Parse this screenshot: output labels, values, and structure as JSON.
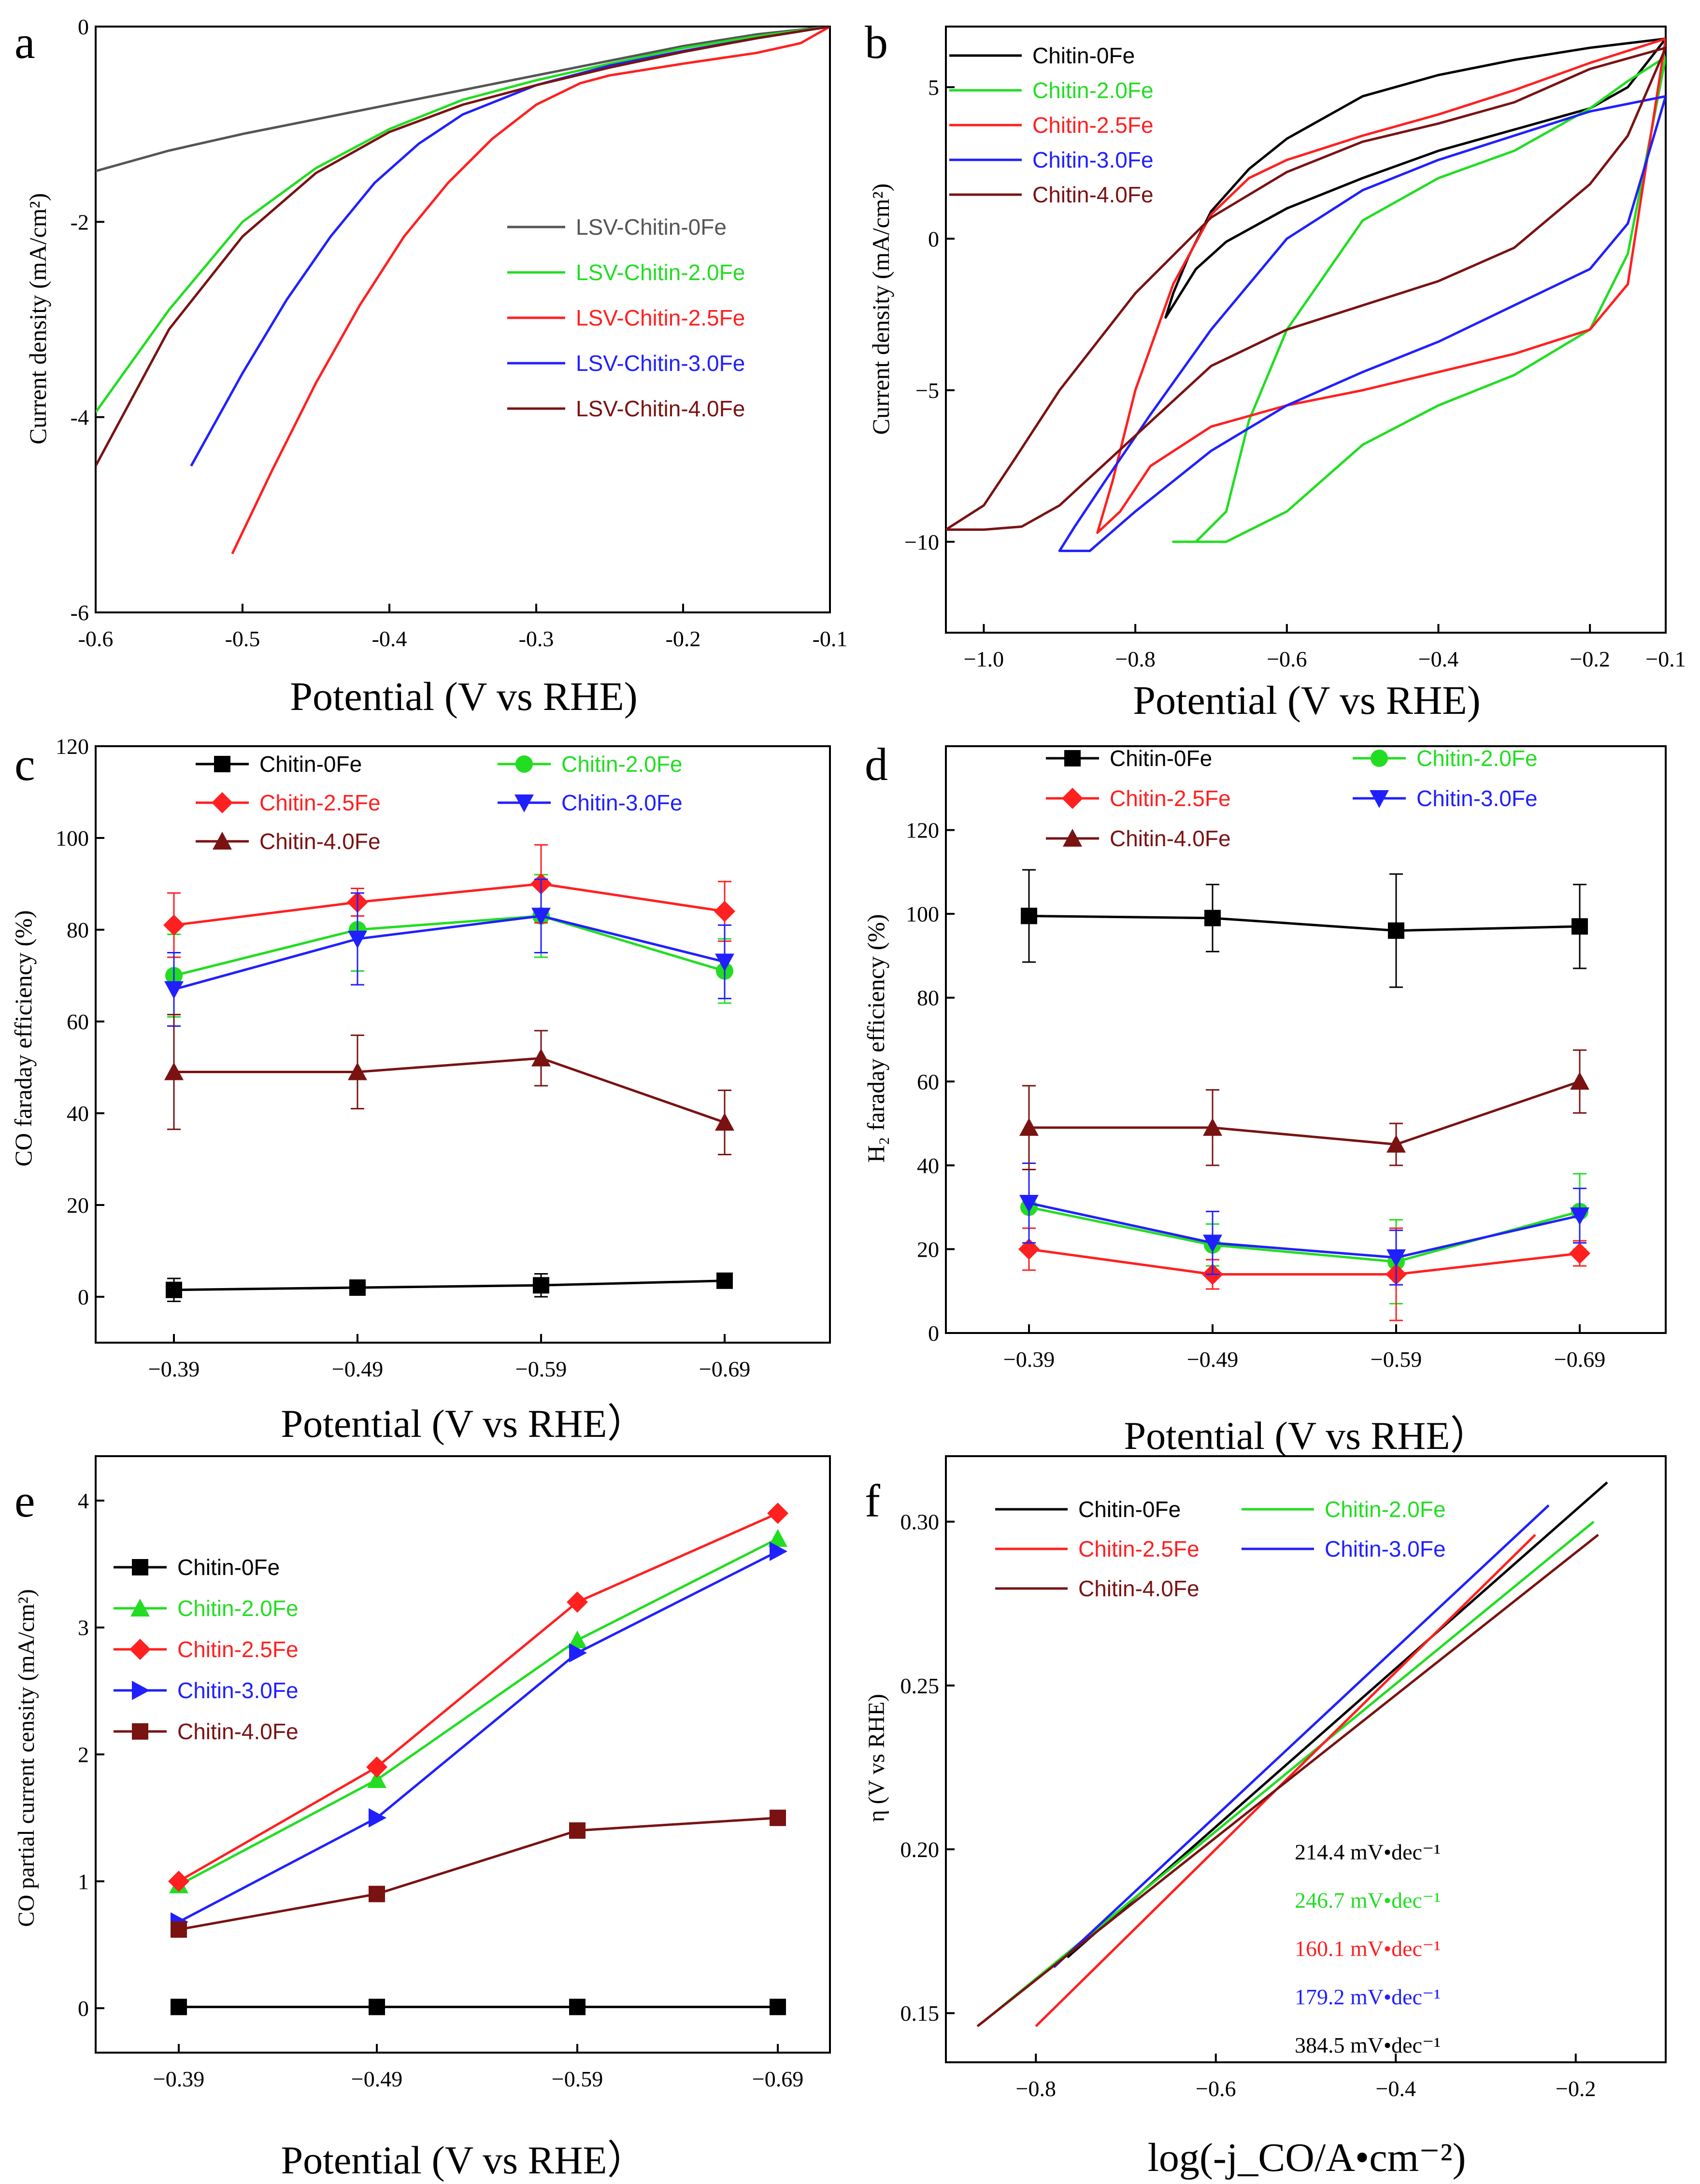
{
  "chart_data": [
    {
      "panel": "a",
      "type": "line",
      "xlabel": "Potential (V vs RHE)",
      "ylabel": "Current density (mA/cm²)",
      "xlim": [
        -0.6,
        -0.1
      ],
      "ylim": [
        -6,
        0
      ],
      "xticks": [
        -0.6,
        -0.5,
        -0.4,
        -0.3,
        -0.2,
        -0.1
      ],
      "yticks": [
        -6,
        -4,
        -2,
        0
      ],
      "xtick_labels": [
        "-0.6",
        "-0.5",
        "-0.4",
        "-0.3",
        "-0.2",
        "-0.1"
      ],
      "ytick_labels": [
        "-6",
        "-4",
        "-2",
        "0"
      ],
      "legend_position": "center-right",
      "series": [
        {
          "name": "LSV-Chitin-0Fe",
          "color": "#555555",
          "x": [
            -0.6,
            -0.55,
            -0.5,
            -0.45,
            -0.4,
            -0.35,
            -0.3,
            -0.25,
            -0.2,
            -0.15,
            -0.1
          ],
          "y": [
            -1.48,
            -1.27,
            -1.1,
            -0.95,
            -0.8,
            -0.65,
            -0.5,
            -0.35,
            -0.2,
            -0.08,
            0
          ]
        },
        {
          "name": "LSV-Chitin-2.0Fe",
          "color": "#22dd22",
          "x": [
            -0.6,
            -0.55,
            -0.5,
            -0.45,
            -0.4,
            -0.35,
            -0.3,
            -0.25,
            -0.2,
            -0.15,
            -0.1
          ],
          "y": [
            -3.95,
            -2.9,
            -2.0,
            -1.45,
            -1.05,
            -0.75,
            -0.55,
            -0.38,
            -0.22,
            -0.1,
            0
          ]
        },
        {
          "name": "LSV-Chitin-2.5Fe",
          "color": "#ff2020",
          "x": [
            -0.507,
            -0.48,
            -0.45,
            -0.42,
            -0.39,
            -0.36,
            -0.33,
            -0.3,
            -0.27,
            -0.25,
            -0.2,
            -0.15,
            -0.12,
            -0.1
          ],
          "y": [
            -5.4,
            -4.55,
            -3.65,
            -2.85,
            -2.15,
            -1.6,
            -1.15,
            -0.8,
            -0.58,
            -0.5,
            -0.38,
            -0.27,
            -0.17,
            0
          ]
        },
        {
          "name": "LSV-Chitin-3.0Fe",
          "color": "#2020ff",
          "x": [
            -0.535,
            -0.5,
            -0.47,
            -0.44,
            -0.41,
            -0.38,
            -0.35,
            -0.3,
            -0.25,
            -0.2,
            -0.15,
            -0.1
          ],
          "y": [
            -4.5,
            -3.55,
            -2.8,
            -2.15,
            -1.6,
            -1.2,
            -0.9,
            -0.6,
            -0.4,
            -0.25,
            -0.12,
            0
          ]
        },
        {
          "name": "LSV-Chitin-4.0Fe",
          "color": "#7a1212",
          "x": [
            -0.6,
            -0.55,
            -0.5,
            -0.45,
            -0.4,
            -0.35,
            -0.3,
            -0.25,
            -0.2,
            -0.15,
            -0.1
          ],
          "y": [
            -4.5,
            -3.1,
            -2.15,
            -1.5,
            -1.08,
            -0.8,
            -0.6,
            -0.42,
            -0.26,
            -0.12,
            0
          ]
        }
      ]
    },
    {
      "panel": "b",
      "type": "line",
      "xlabel": "Potential (V vs RHE)",
      "ylabel": "Current density (mA/cm²)",
      "xlim": [
        -1.05,
        -0.1
      ],
      "ylim": [
        -13,
        7
      ],
      "xticks": [
        -1.0,
        -0.8,
        -0.6,
        -0.4,
        -0.2,
        -0.1
      ],
      "yticks": [
        -10,
        -5,
        0,
        5
      ],
      "xtick_labels": [
        "−1.0",
        "−0.8",
        "−0.6",
        "−0.4",
        "−0.2",
        "−0.1"
      ],
      "ytick_labels": [
        "−10",
        "−5",
        "0",
        "5"
      ],
      "legend_position": "top-left",
      "series": [
        {
          "name": "Chitin-0Fe",
          "color": "#000000",
          "x": [
            -0.1,
            -0.2,
            -0.3,
            -0.4,
            -0.5,
            -0.6,
            -0.65,
            -0.7,
            -0.73,
            -0.75,
            -0.76,
            -0.75,
            -0.72,
            -0.68,
            -0.6,
            -0.5,
            -0.4,
            -0.3,
            -0.2,
            -0.15,
            -0.1
          ],
          "y": [
            6.6,
            6.3,
            5.9,
            5.4,
            4.7,
            3.3,
            2.3,
            0.9,
            -0.6,
            -1.8,
            -2.6,
            -2.2,
            -1.0,
            -0.1,
            1.0,
            2.0,
            2.9,
            3.6,
            4.3,
            5.0,
            6.6
          ]
        },
        {
          "name": "Chitin-2.0Fe",
          "color": "#22dd22",
          "x": [
            -0.1,
            -0.15,
            -0.2,
            -0.3,
            -0.4,
            -0.5,
            -0.6,
            -0.65,
            -0.68,
            -0.72,
            -0.75,
            -0.72,
            -0.68,
            -0.6,
            -0.5,
            -0.4,
            -0.3,
            -0.2,
            -0.15,
            -0.1
          ],
          "y": [
            6.0,
            5.2,
            4.3,
            2.9,
            2.0,
            0.6,
            -3.0,
            -6.0,
            -9.0,
            -10.0,
            -10.0,
            -10.0,
            -10.0,
            -9.0,
            -6.8,
            -5.5,
            -4.5,
            -3.0,
            -0.5,
            6.0
          ]
        },
        {
          "name": "Chitin-2.5Fe",
          "color": "#ff2020",
          "x": [
            -0.1,
            -0.2,
            -0.3,
            -0.4,
            -0.5,
            -0.6,
            -0.65,
            -0.7,
            -0.75,
            -0.8,
            -0.83,
            -0.85,
            -0.82,
            -0.78,
            -0.7,
            -0.6,
            -0.5,
            -0.4,
            -0.3,
            -0.2,
            -0.15,
            -0.1
          ],
          "y": [
            6.6,
            5.8,
            4.9,
            4.1,
            3.4,
            2.6,
            2.0,
            0.8,
            -1.5,
            -5.0,
            -8.0,
            -9.7,
            -9.0,
            -7.5,
            -6.2,
            -5.5,
            -5.0,
            -4.4,
            -3.8,
            -3.0,
            -1.5,
            6.6
          ]
        },
        {
          "name": "Chitin-3.0Fe",
          "color": "#2020ff",
          "x": [
            -0.1,
            -0.2,
            -0.3,
            -0.4,
            -0.5,
            -0.6,
            -0.7,
            -0.78,
            -0.84,
            -0.88,
            -0.9,
            -0.86,
            -0.8,
            -0.7,
            -0.6,
            -0.5,
            -0.4,
            -0.3,
            -0.2,
            -0.15,
            -0.1
          ],
          "y": [
            4.7,
            4.2,
            3.4,
            2.6,
            1.6,
            0.0,
            -3.0,
            -5.8,
            -8.0,
            -9.5,
            -10.3,
            -10.3,
            -9.0,
            -7.0,
            -5.5,
            -4.4,
            -3.4,
            -2.2,
            -1.0,
            0.5,
            4.7
          ]
        },
        {
          "name": "Chitin-4.0Fe",
          "color": "#7a1212",
          "x": [
            -0.1,
            -0.2,
            -0.3,
            -0.4,
            -0.5,
            -0.6,
            -0.7,
            -0.8,
            -0.9,
            -0.96,
            -1.0,
            -1.05,
            -1.0,
            -0.95,
            -0.9,
            -0.8,
            -0.7,
            -0.6,
            -0.5,
            -0.4,
            -0.3,
            -0.2,
            -0.15,
            -0.1
          ],
          "y": [
            6.3,
            5.6,
            4.5,
            3.8,
            3.2,
            2.2,
            0.7,
            -1.8,
            -5.0,
            -7.3,
            -8.8,
            -9.6,
            -9.6,
            -9.5,
            -8.8,
            -6.5,
            -4.2,
            -3.0,
            -2.2,
            -1.4,
            -0.3,
            1.8,
            3.4,
            6.3
          ]
        }
      ]
    },
    {
      "panel": "c",
      "type": "line",
      "xlabel": "Potential (V vs RHE）",
      "ylabel": "CO faraday efficiency (%)",
      "categories": [
        "−0.39",
        "−0.49",
        "−0.59",
        "−0.69"
      ],
      "ylim": [
        -10,
        120
      ],
      "yticks": [
        0,
        20,
        40,
        60,
        80,
        100,
        120
      ],
      "ytick_labels": [
        "0",
        "20",
        "40",
        "60",
        "80",
        "100",
        "120"
      ],
      "legend_position": "top",
      "series": [
        {
          "name": "Chitin-0Fe",
          "color": "#000000",
          "marker": "square",
          "values": [
            1.5,
            2.0,
            2.5,
            3.5
          ],
          "errors": [
            2.5,
            1.0,
            2.5,
            0.8
          ]
        },
        {
          "name": "Chitin-2.0Fe",
          "color": "#22dd22",
          "marker": "circle",
          "values": [
            70,
            80,
            83,
            71
          ],
          "errors": [
            9,
            9,
            9,
            7
          ]
        },
        {
          "name": "Chitin-2.5Fe",
          "color": "#ff2020",
          "marker": "diamond",
          "values": [
            81,
            86,
            90,
            84
          ],
          "errors": [
            7,
            3,
            8.5,
            6.5
          ]
        },
        {
          "name": "Chitin-3.0Fe",
          "color": "#2020ff",
          "marker": "triangle-down",
          "values": [
            67,
            78,
            83,
            73
          ],
          "errors": [
            8,
            10,
            8,
            8
          ]
        },
        {
          "name": "Chitin-4.0Fe",
          "color": "#7a1212",
          "marker": "triangle-up",
          "values": [
            49,
            49,
            52,
            38
          ],
          "errors": [
            12.5,
            8,
            6,
            7
          ]
        }
      ]
    },
    {
      "panel": "d",
      "type": "line",
      "xlabel": "Potential (V vs RHE）",
      "ylabel": "H₂ faraday efficiency (%)",
      "categories": [
        "−0.39",
        "−0.49",
        "−0.59",
        "−0.69"
      ],
      "ylim": [
        0,
        140
      ],
      "yticks": [
        0,
        20,
        40,
        60,
        80,
        100,
        120
      ],
      "ytick_labels": [
        "0",
        "20",
        "40",
        "60",
        "80",
        "100",
        "120"
      ],
      "legend_position": "top",
      "series": [
        {
          "name": "Chitin-0Fe",
          "color": "#000000",
          "marker": "square",
          "values": [
            99.5,
            99,
            96,
            97
          ],
          "errors": [
            11,
            8,
            13.5,
            10
          ]
        },
        {
          "name": "Chitin-2.0Fe",
          "color": "#22dd22",
          "marker": "circle",
          "values": [
            30,
            21,
            17,
            29
          ],
          "errors": [
            9,
            5,
            10,
            9
          ]
        },
        {
          "name": "Chitin-2.5Fe",
          "color": "#ff2020",
          "marker": "diamond",
          "values": [
            20,
            14,
            14,
            19
          ],
          "errors": [
            5,
            3.5,
            11,
            3
          ]
        },
        {
          "name": "Chitin-3.0Fe",
          "color": "#2020ff",
          "marker": "triangle-down",
          "values": [
            31,
            21.5,
            18,
            28
          ],
          "errors": [
            9.5,
            7.5,
            6.5,
            6.5
          ]
        },
        {
          "name": "Chitin-4.0Fe",
          "color": "#7a1212",
          "marker": "triangle-up",
          "values": [
            49,
            49,
            45,
            60
          ],
          "errors": [
            10,
            9,
            5,
            7.5
          ]
        }
      ]
    },
    {
      "panel": "e",
      "type": "line",
      "xlabel": "Potential (V vs RHE）",
      "ylabel": "CO partial current censity (mA/cm²)",
      "categories": [
        "−0.39",
        "−0.49",
        "−0.59",
        "−0.69"
      ],
      "ylim": [
        -0.35,
        4.35
      ],
      "yticks": [
        0,
        1,
        2,
        3,
        4
      ],
      "ytick_labels": [
        "0",
        "1",
        "2",
        "3",
        "4"
      ],
      "legend_position": "top-left",
      "series": [
        {
          "name": "Chitin-0Fe",
          "color": "#000000",
          "marker": "square",
          "values": [
            0.01,
            0.01,
            0.01,
            0.01
          ]
        },
        {
          "name": "Chitin-2.0Fe",
          "color": "#22dd22",
          "marker": "triangle-up",
          "values": [
            0.97,
            1.8,
            2.9,
            3.7
          ]
        },
        {
          "name": "Chitin-2.5Fe",
          "color": "#ff2020",
          "marker": "diamond",
          "values": [
            1.0,
            1.9,
            3.2,
            3.9
          ]
        },
        {
          "name": "Chitin-3.0Fe",
          "color": "#2020ff",
          "marker": "triangle-right",
          "values": [
            0.68,
            1.5,
            2.8,
            3.6
          ]
        },
        {
          "name": "Chitin-4.0Fe",
          "color": "#7a1212",
          "marker": "square",
          "values": [
            0.62,
            0.9,
            1.4,
            1.5
          ]
        }
      ]
    },
    {
      "panel": "f",
      "type": "line",
      "xlabel": "log(-j_CO/A•cm⁻²)",
      "ylabel": "η (V vs RHE)",
      "xlim": [
        -0.9,
        -0.1
      ],
      "ylim": [
        0.135,
        0.32
      ],
      "xticks": [
        -0.8,
        -0.6,
        -0.4,
        -0.2
      ],
      "yticks": [
        0.15,
        0.2,
        0.25,
        0.3
      ],
      "xtick_labels": [
        "−0.8",
        "−0.6",
        "−0.4",
        "−0.2"
      ],
      "ytick_labels": [
        "0.15",
        "0.20",
        "0.25",
        "0.30"
      ],
      "legend_position": "top-left",
      "annotations": [
        {
          "text": "214.4 mV•dec⁻¹",
          "color": "#000000"
        },
        {
          "text": "246.7 mV•dec⁻¹",
          "color": "#22dd22"
        },
        {
          "text": "160.1 mV•dec⁻¹",
          "color": "#ff2020"
        },
        {
          "text": "179.2 mV•dec⁻¹",
          "color": "#2020ff"
        },
        {
          "text": "384.5 mV•dec⁻¹",
          "color": "#000000"
        }
      ],
      "series": [
        {
          "name": "Chitin-0Fe",
          "color": "#000000",
          "x": [
            -0.765,
            -0.165
          ],
          "y": [
            0.167,
            0.312
          ]
        },
        {
          "name": "Chitin-2.0Fe",
          "color": "#22dd22",
          "x": [
            -0.86,
            -0.18
          ],
          "y": [
            0.147,
            0.3
          ]
        },
        {
          "name": "Chitin-2.5Fe",
          "color": "#ff2020",
          "x": [
            -0.8,
            -0.245
          ],
          "y": [
            0.146,
            0.296
          ]
        },
        {
          "name": "Chitin-3.0Fe",
          "color": "#2020ff",
          "x": [
            -0.78,
            -0.23
          ],
          "y": [
            0.164,
            0.305
          ]
        },
        {
          "name": "Chitin-4.0Fe",
          "color": "#7a1212",
          "x": [
            -0.865,
            -0.175
          ],
          "y": [
            0.146,
            0.296
          ]
        }
      ]
    }
  ]
}
